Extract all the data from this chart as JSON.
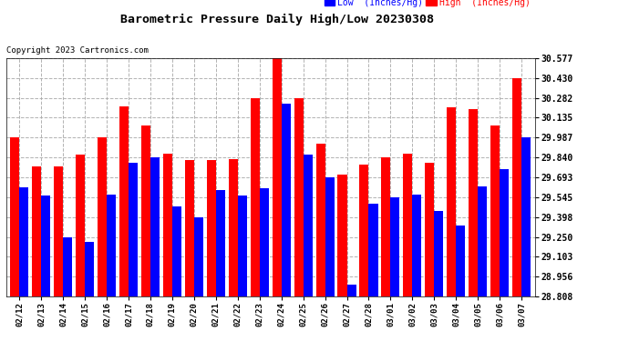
{
  "title": "Barometric Pressure Daily High/Low 20230308",
  "copyright": "Copyright 2023 Cartronics.com",
  "legend_low": "Low  (Inches/Hg)",
  "legend_high": "High  (Inches/Hg)",
  "dates": [
    "02/12",
    "02/13",
    "02/14",
    "02/15",
    "02/16",
    "02/17",
    "02/18",
    "02/19",
    "02/20",
    "02/21",
    "02/22",
    "02/23",
    "02/24",
    "02/25",
    "02/26",
    "02/27",
    "02/28",
    "03/01",
    "03/02",
    "03/03",
    "03/04",
    "03/05",
    "03/06",
    "03/07"
  ],
  "high_values": [
    29.987,
    29.77,
    29.77,
    29.86,
    29.987,
    30.215,
    30.075,
    29.87,
    29.82,
    29.82,
    29.83,
    30.282,
    30.577,
    30.282,
    29.94,
    29.71,
    29.79,
    29.84,
    29.87,
    29.8,
    30.21,
    30.2,
    30.075,
    30.43
  ],
  "low_values": [
    29.62,
    29.56,
    29.245,
    29.215,
    29.565,
    29.8,
    29.84,
    29.48,
    29.395,
    29.595,
    29.555,
    29.61,
    30.24,
    29.86,
    29.695,
    28.9,
    29.495,
    29.545,
    29.565,
    29.44,
    29.335,
    29.625,
    29.755,
    29.987
  ],
  "ylim_min": 28.808,
  "ylim_max": 30.577,
  "yticks": [
    28.808,
    28.956,
    29.103,
    29.25,
    29.398,
    29.545,
    29.693,
    29.84,
    29.987,
    30.135,
    30.282,
    30.43,
    30.577
  ],
  "bar_color_high": "#ff0000",
  "bar_color_low": "#0000ff",
  "background_color": "#ffffff",
  "grid_color": "#aaaaaa",
  "title_color": "#000000",
  "copyright_color": "#000000",
  "legend_low_color": "#0000ff",
  "legend_high_color": "#ff0000",
  "figwidth": 6.9,
  "figheight": 3.75,
  "dpi": 100
}
